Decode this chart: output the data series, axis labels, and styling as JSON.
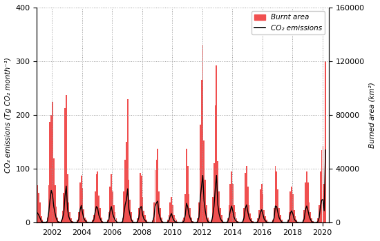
{
  "ylabel_left": "CO₂ emissions (Tg CO₂ month⁻¹)",
  "ylabel_right": "Burned area (km²)",
  "ylim_left": [
    0,
    400
  ],
  "ylim_right": [
    0,
    160000
  ],
  "yticks_left": [
    0,
    100,
    200,
    300,
    400
  ],
  "yticks_right": [
    0,
    40000,
    80000,
    120000,
    160000
  ],
  "xlim": [
    2001.0,
    2020.42
  ],
  "xticks": [
    2002,
    2004,
    2006,
    2008,
    2010,
    2012,
    2014,
    2016,
    2018,
    2020
  ],
  "bar_color": "#f05050",
  "line_color": "#000000",
  "line_width": 1.0,
  "bar_width": 0.082,
  "legend_labels": [
    "Burnt area",
    "CO₂ emissions"
  ],
  "grid_style": ":",
  "grid_color": "#999999",
  "background_color": "#ffffff",
  "months": [
    2001.042,
    2001.125,
    2001.208,
    2001.292,
    2001.375,
    2001.458,
    2001.542,
    2001.625,
    2001.708,
    2001.792,
    2001.875,
    2001.958,
    2002.042,
    2002.125,
    2002.208,
    2002.292,
    2002.375,
    2002.458,
    2002.542,
    2002.625,
    2002.708,
    2002.792,
    2002.875,
    2002.958,
    2003.042,
    2003.125,
    2003.208,
    2003.292,
    2003.375,
    2003.458,
    2003.542,
    2003.625,
    2003.708,
    2003.792,
    2003.875,
    2003.958,
    2004.042,
    2004.125,
    2004.208,
    2004.292,
    2004.375,
    2004.458,
    2004.542,
    2004.625,
    2004.708,
    2004.792,
    2004.875,
    2004.958,
    2005.042,
    2005.125,
    2005.208,
    2005.292,
    2005.375,
    2005.458,
    2005.542,
    2005.625,
    2005.708,
    2005.792,
    2005.875,
    2005.958,
    2006.042,
    2006.125,
    2006.208,
    2006.292,
    2006.375,
    2006.458,
    2006.542,
    2006.625,
    2006.708,
    2006.792,
    2006.875,
    2006.958,
    2007.042,
    2007.125,
    2007.208,
    2007.292,
    2007.375,
    2007.458,
    2007.542,
    2007.625,
    2007.708,
    2007.792,
    2007.875,
    2007.958,
    2008.042,
    2008.125,
    2008.208,
    2008.292,
    2008.375,
    2008.458,
    2008.542,
    2008.625,
    2008.708,
    2008.792,
    2008.875,
    2008.958,
    2009.042,
    2009.125,
    2009.208,
    2009.292,
    2009.375,
    2009.458,
    2009.542,
    2009.625,
    2009.708,
    2009.792,
    2009.875,
    2009.958,
    2010.042,
    2010.125,
    2010.208,
    2010.292,
    2010.375,
    2010.458,
    2010.542,
    2010.625,
    2010.708,
    2010.792,
    2010.875,
    2010.958,
    2011.042,
    2011.125,
    2011.208,
    2011.292,
    2011.375,
    2011.458,
    2011.542,
    2011.625,
    2011.708,
    2011.792,
    2011.875,
    2011.958,
    2012.042,
    2012.125,
    2012.208,
    2012.292,
    2012.375,
    2012.458,
    2012.542,
    2012.625,
    2012.708,
    2012.792,
    2012.875,
    2012.958,
    2013.042,
    2013.125,
    2013.208,
    2013.292,
    2013.375,
    2013.458,
    2013.542,
    2013.625,
    2013.708,
    2013.792,
    2013.875,
    2013.958,
    2014.042,
    2014.125,
    2014.208,
    2014.292,
    2014.375,
    2014.458,
    2014.542,
    2014.625,
    2014.708,
    2014.792,
    2014.875,
    2014.958,
    2015.042,
    2015.125,
    2015.208,
    2015.292,
    2015.375,
    2015.458,
    2015.542,
    2015.625,
    2015.708,
    2015.792,
    2015.875,
    2015.958,
    2016.042,
    2016.125,
    2016.208,
    2016.292,
    2016.375,
    2016.458,
    2016.542,
    2016.625,
    2016.708,
    2016.792,
    2016.875,
    2016.958,
    2017.042,
    2017.125,
    2017.208,
    2017.292,
    2017.375,
    2017.458,
    2017.542,
    2017.625,
    2017.708,
    2017.792,
    2017.875,
    2017.958,
    2018.042,
    2018.125,
    2018.208,
    2018.292,
    2018.375,
    2018.458,
    2018.542,
    2018.625,
    2018.708,
    2018.792,
    2018.875,
    2018.958,
    2019.042,
    2019.125,
    2019.208,
    2019.292,
    2019.375,
    2019.458,
    2019.542,
    2019.625,
    2019.708,
    2019.792,
    2019.875,
    2019.958,
    2020.042,
    2020.125,
    2020.208
  ],
  "burnt_area": [
    28000,
    22000,
    15000,
    5000,
    2000,
    800,
    500,
    800,
    4000,
    28000,
    75000,
    80000,
    90000,
    48000,
    28000,
    12000,
    4000,
    1200,
    800,
    2000,
    9000,
    22000,
    85000,
    95000,
    36000,
    15000,
    8000,
    3000,
    1200,
    400,
    200,
    800,
    2000,
    8000,
    30000,
    35000,
    26000,
    10000,
    4000,
    2000,
    800,
    400,
    200,
    400,
    2000,
    6000,
    23000,
    36000,
    38000,
    20000,
    11000,
    4000,
    1200,
    400,
    200,
    400,
    2000,
    8000,
    27000,
    36000,
    23000,
    13000,
    8000,
    3000,
    800,
    400,
    400,
    800,
    3000,
    23000,
    47000,
    60000,
    92000,
    32000,
    17000,
    8000,
    2000,
    800,
    400,
    800,
    3000,
    11000,
    37000,
    35000,
    19000,
    9000,
    6000,
    2000,
    800,
    200,
    200,
    400,
    1500,
    15000,
    39000,
    47000,
    55000,
    23000,
    11000,
    4000,
    1200,
    400,
    200,
    400,
    2000,
    6000,
    15000,
    19000,
    13000,
    6000,
    3000,
    2000,
    800,
    200,
    200,
    400,
    2000,
    4000,
    21000,
    55000,
    42000,
    21000,
    11000,
    4000,
    1200,
    400,
    200,
    800,
    3000,
    15000,
    73000,
    106000,
    132000,
    61000,
    32000,
    13000,
    4000,
    2000,
    800,
    2000,
    19000,
    44000,
    87000,
    117000,
    46000,
    23000,
    11000,
    6000,
    2000,
    800,
    400,
    800,
    3000,
    13000,
    29000,
    38000,
    29000,
    13000,
    8000,
    3000,
    1200,
    400,
    200,
    600,
    2300,
    11000,
    37000,
    42000,
    27000,
    13000,
    7000,
    3000,
    1200,
    400,
    200,
    600,
    3000,
    9500,
    25000,
    29000,
    21000,
    9500,
    4600,
    2000,
    800,
    200,
    200,
    400,
    2300,
    11000,
    42000,
    38000,
    25000,
    11000,
    6000,
    2300,
    800,
    400,
    200,
    400,
    2000,
    8000,
    23000,
    27000,
    21000,
    9500,
    4600,
    2000,
    800,
    200,
    200,
    400,
    2000,
    9500,
    30000,
    38000,
    30000,
    15000,
    8000,
    3000,
    1200,
    400,
    200,
    600,
    3000,
    13000,
    38000,
    54000,
    57000,
    29000,
    120000
  ],
  "co2_emissions": [
    18,
    14,
    9,
    3,
    1.2,
    0.5,
    0.4,
    0.5,
    3,
    20,
    42,
    60,
    52,
    30,
    18,
    8,
    2.5,
    0.8,
    0.4,
    1.2,
    8,
    18,
    50,
    68,
    25,
    11,
    5,
    2,
    0.8,
    0.4,
    0.2,
    0.4,
    1.2,
    6,
    24,
    32,
    18,
    8,
    4,
    1.5,
    0.5,
    0.2,
    0.2,
    0.4,
    1.2,
    5,
    19,
    30,
    27,
    14,
    8,
    2.5,
    0.8,
    0.2,
    0.2,
    0.4,
    1.2,
    6,
    22,
    30,
    17,
    10,
    5,
    2,
    0.4,
    0.2,
    0.2,
    0.4,
    2,
    17,
    33,
    42,
    63,
    25,
    13,
    5,
    1.2,
    0.4,
    0.2,
    0.4,
    2,
    10,
    28,
    30,
    14,
    7,
    4,
    1.2,
    0.4,
    0.1,
    0.1,
    0.2,
    0.8,
    11,
    31,
    37,
    40,
    17,
    9,
    2.5,
    0.8,
    0.2,
    0.1,
    0.2,
    1.2,
    4,
    12,
    17,
    9,
    4,
    2,
    1.2,
    0.4,
    0.1,
    0.1,
    0.2,
    1.2,
    3,
    14,
    36,
    29,
    15,
    8,
    2.5,
    0.8,
    0.2,
    0.1,
    0.4,
    2,
    11,
    46,
    67,
    88,
    41,
    22,
    9,
    2.5,
    0.8,
    0.4,
    1.2,
    13,
    31,
    63,
    88,
    34,
    17,
    8,
    3.5,
    1.2,
    0.4,
    0.2,
    0.4,
    2,
    10,
    22,
    31,
    22,
    10,
    5,
    2,
    0.8,
    0.2,
    0.1,
    0.4,
    1.7,
    9,
    27,
    33,
    20,
    10,
    5,
    2,
    0.8,
    0.2,
    0.1,
    0.4,
    2,
    8,
    19,
    24,
    16,
    7,
    3.5,
    1.2,
    0.4,
    0.1,
    0.1,
    0.2,
    1.7,
    9,
    31,
    30,
    19,
    9,
    4.5,
    1.7,
    0.4,
    0.2,
    0.1,
    0.2,
    1.2,
    6,
    18,
    22,
    16,
    7,
    3.5,
    1.2,
    0.4,
    0.1,
    0.1,
    0.2,
    1.2,
    7,
    24,
    31,
    23,
    12,
    6,
    2,
    0.8,
    0.2,
    0.1,
    0.4,
    2,
    10,
    30,
    42,
    43,
    22,
    135
  ]
}
